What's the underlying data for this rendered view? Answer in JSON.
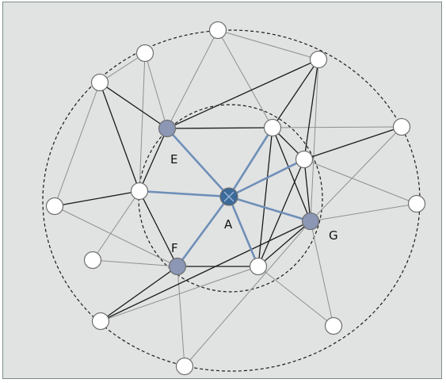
{
  "diagram": {
    "colors": {
      "background": "#e1e3e3",
      "edge_outer": "#8f8f8f",
      "edge_inner": "#1a1a1a",
      "edge_center": "#6f8fb8",
      "node_plain_fill": "#ffffff",
      "node_neighbor_fill": "#8b97b5",
      "node_center_fill": "#3c6a99",
      "node_stroke": "#6e6e6e",
      "dashed_circle": "#1a1a1a"
    },
    "labels": {
      "A": "A",
      "E": "E",
      "F": "F",
      "G": "G"
    },
    "node_kinds": {
      "center": [
        "A"
      ],
      "neighbor": [
        "E",
        "F",
        "G"
      ]
    }
  }
}
